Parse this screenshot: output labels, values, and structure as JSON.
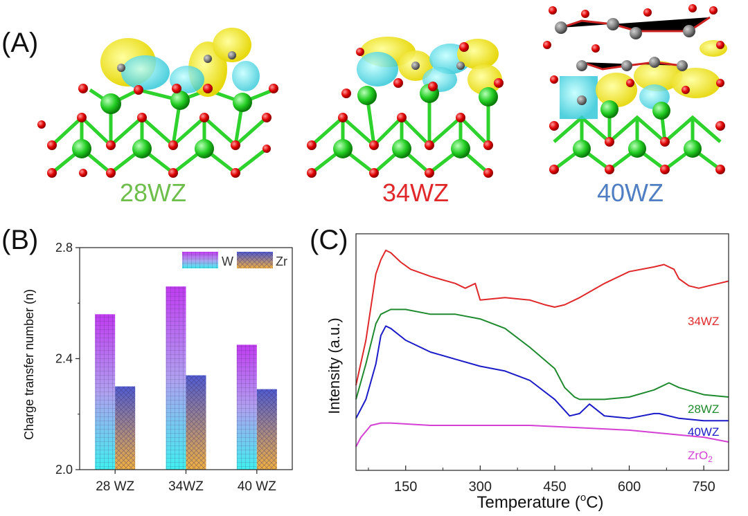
{
  "panel_a": {
    "letter": "(A)",
    "structures": [
      {
        "label": "28WZ",
        "color": "#6dbe4b"
      },
      {
        "label": "34WZ",
        "color": "#e0282a"
      },
      {
        "label": "40WZ",
        "color": "#4f7fc2"
      }
    ]
  },
  "panel_b": {
    "letter": "(B)",
    "yticks": [
      "2.0",
      "2.4",
      "2.8"
    ]
  },
  "panel_c": {
    "letter": "(C)",
    "xticks": [
      "150",
      "300",
      "450",
      "600",
      "750"
    ],
    "xlabel_prefix": "Temperature (",
    "xlabel_sup": "o",
    "xlabel_suffix": "C)",
    "zro2_main": "ZrO",
    "zro2_sub": "2"
  },
  "chart_data": [
    {
      "type": "bar",
      "ylabel": "Charge transfer number (n)",
      "ylim": [
        2.0,
        2.8
      ],
      "categories": [
        "28 WZ",
        "34WZ",
        "40 WZ"
      ],
      "series": [
        {
          "name": "W",
          "values": [
            2.56,
            2.66,
            2.45
          ]
        },
        {
          "name": "Zr",
          "values": [
            2.3,
            2.34,
            2.29
          ]
        }
      ],
      "legend": "top-right"
    },
    {
      "type": "line",
      "xlabel": "Temperature (oC)",
      "ylabel": "Intensity (a.u.)",
      "xlim": [
        50,
        800
      ],
      "ylim": [
        0,
        1
      ],
      "series": [
        {
          "name": "34WZ",
          "color": "#e0282a",
          "x": [
            50,
            70,
            90,
            100,
            110,
            120,
            140,
            160,
            200,
            250,
            270,
            290,
            300,
            350,
            400,
            430,
            450,
            470,
            500,
            550,
            600,
            650,
            670,
            690,
            700,
            720,
            740,
            760,
            780,
            800
          ],
          "y": [
            0.36,
            0.55,
            0.83,
            0.89,
            0.93,
            0.92,
            0.88,
            0.85,
            0.82,
            0.79,
            0.77,
            0.79,
            0.72,
            0.73,
            0.72,
            0.7,
            0.69,
            0.7,
            0.73,
            0.79,
            0.84,
            0.86,
            0.87,
            0.85,
            0.81,
            0.78,
            0.77,
            0.78,
            0.79,
            0.8
          ]
        },
        {
          "name": "28WZ",
          "color": "#1e8a2e",
          "x": [
            50,
            70,
            90,
            100,
            120,
            150,
            200,
            250,
            300,
            350,
            400,
            450,
            470,
            490,
            500,
            550,
            600,
            650,
            680,
            700,
            750,
            800
          ],
          "y": [
            0.3,
            0.45,
            0.62,
            0.66,
            0.68,
            0.68,
            0.66,
            0.66,
            0.64,
            0.6,
            0.52,
            0.43,
            0.35,
            0.31,
            0.3,
            0.3,
            0.31,
            0.34,
            0.37,
            0.35,
            0.32,
            0.31
          ]
        },
        {
          "name": "40WZ",
          "color": "#1a1ac8",
          "x": [
            50,
            70,
            90,
            100,
            110,
            120,
            150,
            200,
            250,
            300,
            350,
            400,
            450,
            480,
            500,
            520,
            550,
            600,
            650,
            660,
            700,
            750,
            800
          ],
          "y": [
            0.22,
            0.3,
            0.45,
            0.57,
            0.61,
            0.6,
            0.55,
            0.5,
            0.47,
            0.44,
            0.42,
            0.38,
            0.3,
            0.23,
            0.24,
            0.28,
            0.23,
            0.22,
            0.24,
            0.24,
            0.22,
            0.21,
            0.21
          ]
        },
        {
          "name": "ZrO2",
          "color": "#d43fd4",
          "x": [
            50,
            60,
            80,
            100,
            120,
            200,
            300,
            400,
            500,
            600,
            700,
            750,
            800
          ],
          "y": [
            0.1,
            0.14,
            0.19,
            0.2,
            0.2,
            0.19,
            0.19,
            0.19,
            0.18,
            0.17,
            0.15,
            0.14,
            0.12
          ]
        }
      ]
    }
  ]
}
